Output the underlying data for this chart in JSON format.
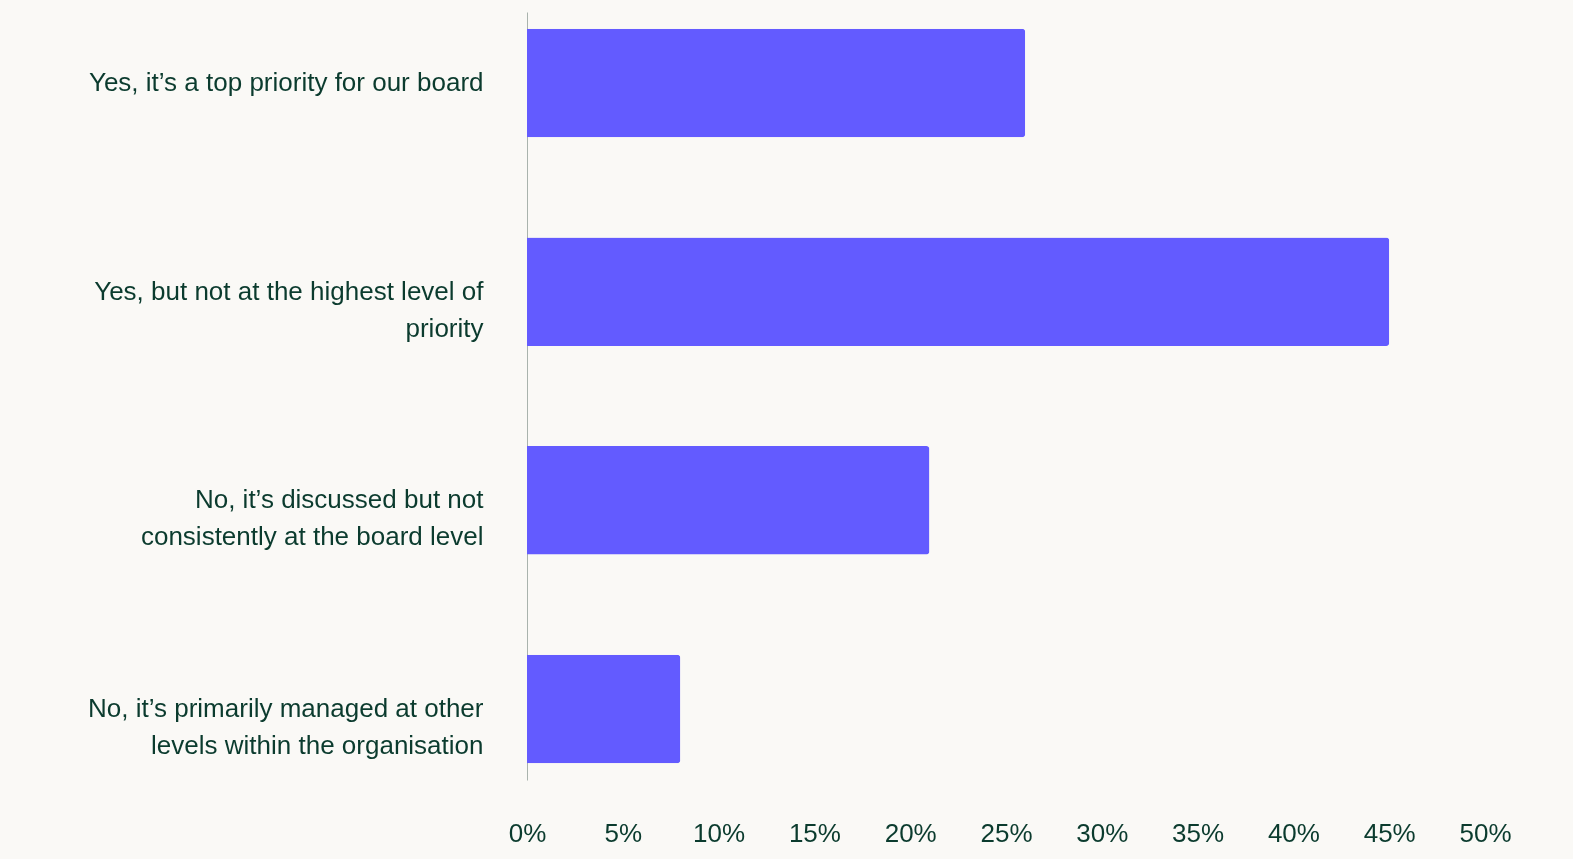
{
  "chart_data": {
    "type": "bar",
    "orientation": "horizontal",
    "categories": [
      "Yes, it’s a top priority for our board",
      "Yes, but not at the highest level of priority",
      "No, it’s discussed but not consistently at the board level",
      "No, it’s primarily managed at other levels within the organisation"
    ],
    "values": [
      26,
      45,
      21,
      8
    ],
    "color": "#635bff",
    "xlim": [
      0,
      50
    ],
    "xticks": [
      {
        "value": 0,
        "label": "0%"
      },
      {
        "value": 5,
        "label": "5%"
      },
      {
        "value": 10,
        "label": "10%"
      },
      {
        "value": 15,
        "label": "15%"
      },
      {
        "value": 20,
        "label": "20%"
      },
      {
        "value": 25,
        "label": "25%"
      },
      {
        "value": 30,
        "label": "30%"
      },
      {
        "value": 35,
        "label": "35%"
      },
      {
        "value": 40,
        "label": "40%"
      },
      {
        "value": 45,
        "label": "45%"
      },
      {
        "value": 50,
        "label": "50%"
      }
    ],
    "grid": false
  }
}
